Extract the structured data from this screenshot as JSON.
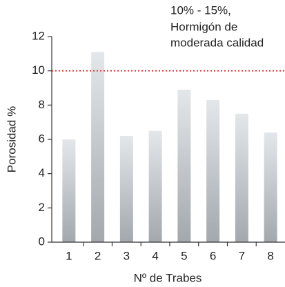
{
  "chart_data": {
    "type": "bar",
    "categories": [
      "1",
      "2",
      "3",
      "4",
      "5",
      "6",
      "7",
      "8"
    ],
    "values": [
      6.0,
      11.1,
      6.2,
      6.5,
      8.9,
      8.3,
      7.5,
      6.4
    ],
    "ylim": [
      0,
      12
    ],
    "yticks": [
      0,
      2,
      4,
      6,
      8,
      10,
      12
    ],
    "x_label": "Nº de Trabes",
    "y_label": "Porosidad %",
    "reference_line": {
      "value": 10,
      "color": "#e0302e"
    },
    "annotation": [
      "10% - 15%,",
      "Hormigón de",
      "moderada calidad"
    ]
  }
}
